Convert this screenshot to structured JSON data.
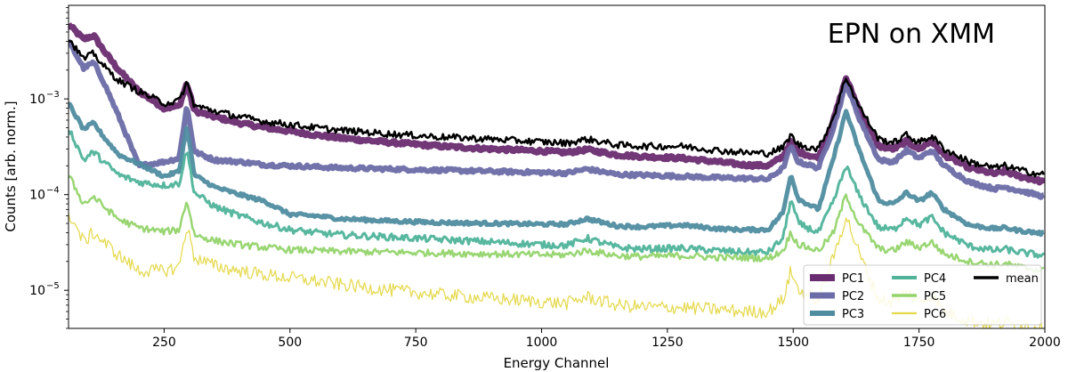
{
  "chart_data": {
    "type": "line",
    "title": "",
    "annotation": "EPN on XMM",
    "xlabel": "Energy Channel",
    "ylabel": "Counts [arb. norm.]",
    "xlim": [
      60,
      2000
    ],
    "ylim": [
      4e-06,
      0.0095
    ],
    "yscale": "log",
    "grid": false,
    "legend_position": "lower-right",
    "x_ticks": [
      250,
      500,
      750,
      1000,
      1250,
      1500,
      1750,
      2000
    ],
    "y_ticks": [
      {
        "value": 1e-05,
        "base": "10",
        "exp": "−5"
      },
      {
        "value": 0.0001,
        "base": "10",
        "exp": "−4"
      },
      {
        "value": 0.001,
        "base": "10",
        "exp": "−3"
      }
    ],
    "x": [
      60,
      90,
      110,
      130,
      160,
      200,
      250,
      280,
      295,
      310,
      350,
      400,
      450,
      500,
      550,
      600,
      700,
      800,
      900,
      1000,
      1050,
      1090,
      1150,
      1200,
      1280,
      1350,
      1400,
      1450,
      1480,
      1495,
      1510,
      1550,
      1580,
      1605,
      1630,
      1670,
      1700,
      1725,
      1750,
      1775,
      1800,
      1850,
      1900,
      1920,
      1950,
      2000
    ],
    "series": [
      {
        "name": "PC1",
        "color": "#6a2c70",
        "width": 7,
        "values": [
          0.006,
          0.0042,
          0.0046,
          0.0032,
          0.002,
          0.0012,
          0.0008,
          0.00084,
          0.00145,
          0.00075,
          0.00065,
          0.00056,
          0.0005,
          0.00046,
          0.00042,
          0.00039,
          0.00035,
          0.00032,
          0.0003,
          0.000285,
          0.000275,
          0.000295,
          0.00026,
          0.00025,
          0.00024,
          0.00022,
          0.000205,
          0.0002,
          0.00025,
          0.00036,
          0.00028,
          0.00024,
          0.0006,
          0.00165,
          0.0008,
          0.00032,
          0.0003,
          0.00036,
          0.0003,
          0.00036,
          0.00026,
          0.00019,
          0.000165,
          0.000175,
          0.000155,
          0.000135
        ]
      },
      {
        "name": "PC2",
        "color": "#6c6ca8",
        "width": 6,
        "values": [
          0.004,
          0.0021,
          0.0024,
          0.0015,
          0.00065,
          0.0002,
          0.00022,
          0.00024,
          0.00085,
          0.00028,
          0.00023,
          0.00022,
          0.000205,
          0.0002,
          0.000195,
          0.00019,
          0.000185,
          0.00018,
          0.000175,
          0.00017,
          0.000168,
          0.000185,
          0.000162,
          0.00016,
          0.000155,
          0.00015,
          0.000148,
          0.000145,
          0.00019,
          0.00032,
          0.00022,
          0.00019,
          0.0005,
          0.00145,
          0.00065,
          0.00023,
          0.00022,
          0.00029,
          0.00024,
          0.00029,
          0.0002,
          0.000135,
          0.000115,
          0.00012,
          0.00011,
          9.5e-05
        ]
      },
      {
        "name": "PC3",
        "color": "#4f8ca0",
        "width": 5,
        "values": [
          0.0009,
          0.00048,
          0.00056,
          0.0004,
          0.00026,
          0.00021,
          0.000155,
          0.000175,
          0.00052,
          0.00016,
          0.00012,
          0.0001,
          8.5e-05,
          6.2e-05,
          6e-05,
          5.6e-05,
          5.3e-05,
          5.1e-05,
          5e-05,
          4.9e-05,
          4.9e-05,
          5.6e-05,
          4.7e-05,
          4.6e-05,
          4.8e-05,
          4.4e-05,
          4.3e-05,
          4.3e-05,
          6.5e-05,
          0.000165,
          9e-05,
          7e-05,
          0.00024,
          0.00075,
          0.0003,
          8.5e-05,
          8e-05,
          0.000105,
          8.5e-05,
          0.000105,
          7e-05,
          4.8e-05,
          4.4e-05,
          4.5e-05,
          4.2e-05,
          3.9e-05
        ]
      },
      {
        "name": "PC4",
        "color": "#4fb39a",
        "width": 3,
        "values": [
          0.0005,
          0.00023,
          0.00028,
          0.00022,
          0.00016,
          0.000135,
          0.000125,
          0.00013,
          0.0003,
          0.000105,
          7.5e-05,
          6e-05,
          5e-05,
          4.3e-05,
          4e-05,
          3.8e-05,
          3.6e-05,
          3.4e-05,
          3.2e-05,
          3e-05,
          2.95e-05,
          3.5e-05,
          2.8e-05,
          2.7e-05,
          2.75e-05,
          2.6e-05,
          2.5e-05,
          2.5e-05,
          3.5e-05,
          9e-05,
          5e-05,
          4e-05,
          8.5e-05,
          0.0002,
          0.0001,
          4.5e-05,
          4.3e-05,
          5.8e-05,
          4.8e-05,
          5.8e-05,
          4e-05,
          2.9e-05,
          2.6e-05,
          2.7e-05,
          2.5e-05,
          2.3e-05
        ]
      },
      {
        "name": "PC5",
        "color": "#93d46b",
        "width": 2.5,
        "values": [
          0.00016,
          8e-05,
          9.5e-05,
          7.5e-05,
          5.5e-05,
          4.5e-05,
          4.1e-05,
          4.3e-05,
          8.8e-05,
          3.8e-05,
          3.3e-05,
          3e-05,
          2.8e-05,
          2.65e-05,
          2.6e-05,
          2.55e-05,
          2.5e-05,
          2.45e-05,
          2.4e-05,
          2.35e-05,
          2.35e-05,
          2.6e-05,
          2.3e-05,
          2.25e-05,
          2.3e-05,
          2.2e-05,
          2.2e-05,
          2.15e-05,
          2.6e-05,
          4e-05,
          3e-05,
          2.6e-05,
          4e-05,
          0.0001,
          5e-05,
          2.7e-05,
          2.6e-05,
          3.2e-05,
          2.8e-05,
          3.2e-05,
          2.4e-05,
          2e-05,
          1.85e-05,
          1.9e-05,
          1.75e-05,
          1.6e-05
        ]
      },
      {
        "name": "PC6",
        "color": "#e5d84a",
        "width": 1.3,
        "values": [
          6.5e-05,
          3.2e-05,
          4e-05,
          3.2e-05,
          2.3e-05,
          1.6e-05,
          1.6e-05,
          1.75e-05,
          4.8e-05,
          2.2e-05,
          1.8e-05,
          1.6e-05,
          1.45e-05,
          1.35e-05,
          1.25e-05,
          1.15e-05,
          1e-05,
          9e-06,
          8.2e-06,
          7.6e-06,
          7.3e-06,
          8.5e-06,
          7e-06,
          6.7e-06,
          6.6e-06,
          6.3e-06,
          6e-06,
          6e-06,
          8e-06,
          1.6e-05,
          1e-05,
          8e-06,
          2.2e-05,
          6e-05,
          2.5e-05,
          8e-06,
          7.5e-06,
          9.5e-06,
          7.5e-06,
          9e-06,
          6e-06,
          4.8e-06,
          4.4e-06,
          4.6e-06,
          4.3e-06,
          4.2e-06
        ]
      },
      {
        "name": "mean",
        "color": "#000000",
        "width": 2.5,
        "values": [
          0.0043,
          0.0026,
          0.003,
          0.0022,
          0.00155,
          0.0012,
          0.0009,
          0.00095,
          0.0015,
          0.00085,
          0.00075,
          0.00065,
          0.00058,
          0.00054,
          0.0005,
          0.00047,
          0.00043,
          0.0004,
          0.00038,
          0.000355,
          0.000345,
          0.00038,
          0.00033,
          0.00032,
          0.00032,
          0.00029,
          0.000275,
          0.00027,
          0.00031,
          0.00042,
          0.00033,
          0.0003,
          0.00065,
          0.0017,
          0.00085,
          0.00038,
          0.00035,
          0.00042,
          0.00035,
          0.00041,
          0.0003,
          0.00022,
          0.00019,
          0.0002,
          0.00018,
          0.00016
        ]
      }
    ]
  }
}
